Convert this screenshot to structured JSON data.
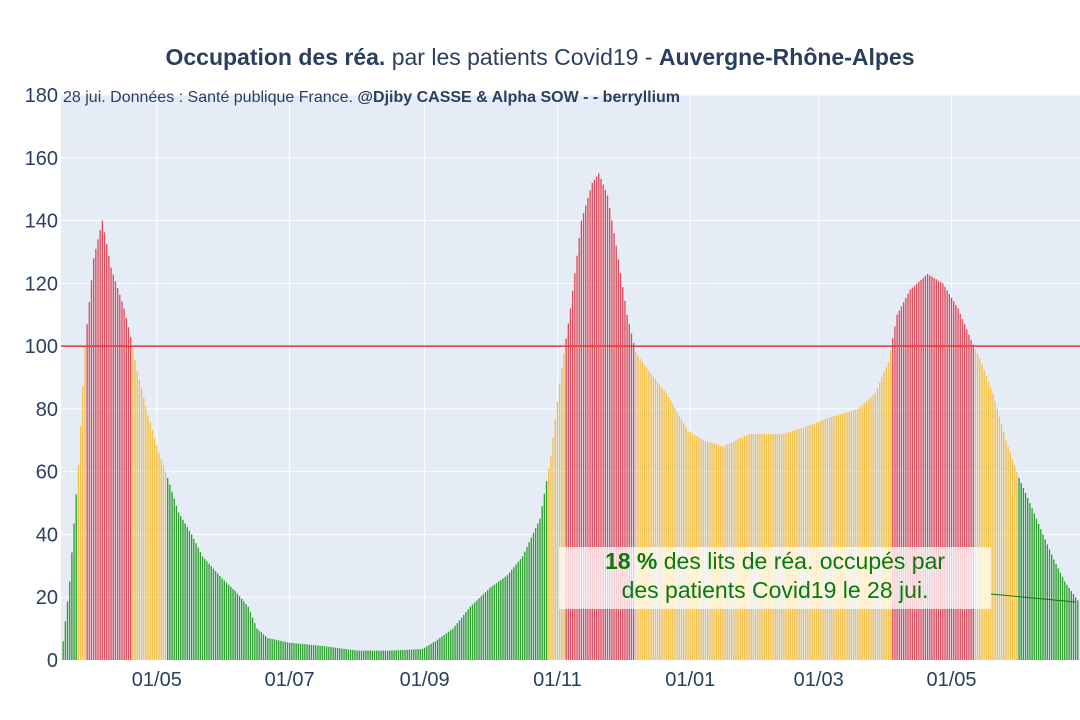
{
  "title": {
    "bold_part": "Occupation des réa.",
    "normal_part": "par les patients Covid19 -",
    "region": "Auvergne-Rhône-Alpes"
  },
  "subtitle": {
    "date_text": "28 jui. Données : Santé publique France.",
    "authors": "@Djiby CASSE & Alpha SOW -  - berryllium"
  },
  "callout": {
    "percent": "18  %",
    "line1_rest": "des lits de réa. occupés par",
    "line2": "des patients Covid19 le 28 jui."
  },
  "colors": {
    "background": "#e5ecf6",
    "green": "#2e9e2e",
    "orange": "#f5c04a",
    "red": "#e04a5a",
    "threshold_line": "#e03a3a",
    "callout_text": "#0a7a0a"
  },
  "chart_data": {
    "type": "bar",
    "xlabel": "",
    "ylabel": "",
    "ylim": [
      0,
      180
    ],
    "yticks": [
      0,
      20,
      40,
      60,
      80,
      100,
      120,
      140,
      160,
      180
    ],
    "xlim": [
      "2020-03-18",
      "2021-06-29"
    ],
    "xticks": [
      {
        "date": "2020-05-01",
        "label": "01/05"
      },
      {
        "date": "2020-07-01",
        "label": "01/07"
      },
      {
        "date": "2020-09-01",
        "label": "01/09"
      },
      {
        "date": "2020-11-01",
        "label": "01/11"
      },
      {
        "date": "2021-01-01",
        "label": "01/01"
      },
      {
        "date": "2021-03-01",
        "label": "01/03"
      },
      {
        "date": "2021-05-01",
        "label": "01/05"
      }
    ],
    "threshold": 100,
    "color_rule": "green below 60, orange 60-100, red above 100",
    "grid": true,
    "series_keypoints": [
      [
        "2020-03-19",
        6
      ],
      [
        "2020-03-22",
        25
      ],
      [
        "2020-03-26",
        62
      ],
      [
        "2020-03-29",
        100
      ],
      [
        "2020-04-02",
        128
      ],
      [
        "2020-04-06",
        140
      ],
      [
        "2020-04-10",
        125
      ],
      [
        "2020-04-16",
        112
      ],
      [
        "2020-04-19",
        103
      ],
      [
        "2020-04-22",
        92
      ],
      [
        "2020-04-27",
        78
      ],
      [
        "2020-05-02",
        66
      ],
      [
        "2020-05-06",
        58
      ],
      [
        "2020-05-11",
        47
      ],
      [
        "2020-05-17",
        40
      ],
      [
        "2020-05-22",
        33
      ],
      [
        "2020-05-31",
        26
      ],
      [
        "2020-06-06",
        22
      ],
      [
        "2020-06-12",
        17
      ],
      [
        "2020-06-16",
        10
      ],
      [
        "2020-06-21",
        7
      ],
      [
        "2020-07-01",
        5.5
      ],
      [
        "2020-07-16",
        4.5
      ],
      [
        "2020-08-01",
        3
      ],
      [
        "2020-08-16",
        3
      ],
      [
        "2020-08-31",
        3.5
      ],
      [
        "2020-09-06",
        6
      ],
      [
        "2020-09-14",
        10
      ],
      [
        "2020-09-22",
        17
      ],
      [
        "2020-10-01",
        23
      ],
      [
        "2020-10-09",
        27
      ],
      [
        "2020-10-16",
        33
      ],
      [
        "2020-10-24",
        45
      ],
      [
        "2020-10-29",
        65
      ],
      [
        "2020-11-02",
        88
      ],
      [
        "2020-11-07",
        112
      ],
      [
        "2020-11-12",
        140
      ],
      [
        "2020-11-17",
        152
      ],
      [
        "2020-11-20",
        155
      ],
      [
        "2020-11-24",
        148
      ],
      [
        "2020-11-28",
        132
      ],
      [
        "2020-12-03",
        110
      ],
      [
        "2020-12-07",
        98
      ],
      [
        "2020-12-12",
        93
      ],
      [
        "2020-12-21",
        85
      ],
      [
        "2020-12-31",
        73
      ],
      [
        "2021-01-07",
        70
      ],
      [
        "2021-01-16",
        68
      ],
      [
        "2021-01-28",
        72
      ],
      [
        "2021-02-12",
        72
      ],
      [
        "2021-02-22",
        74
      ],
      [
        "2021-03-05",
        77
      ],
      [
        "2021-03-19",
        80
      ],
      [
        "2021-03-27",
        85
      ],
      [
        "2021-04-02",
        95
      ],
      [
        "2021-04-06",
        110
      ],
      [
        "2021-04-12",
        118
      ],
      [
        "2021-04-20",
        123
      ],
      [
        "2021-04-27",
        120
      ],
      [
        "2021-05-04",
        112
      ],
      [
        "2021-05-10",
        102
      ],
      [
        "2021-05-14",
        96
      ],
      [
        "2021-05-20",
        85
      ],
      [
        "2021-05-26",
        70
      ],
      [
        "2021-06-01",
        58
      ],
      [
        "2021-06-06",
        50
      ],
      [
        "2021-06-12",
        40
      ],
      [
        "2021-06-17",
        32
      ],
      [
        "2021-06-22",
        25
      ],
      [
        "2021-06-28",
        19
      ]
    ]
  }
}
